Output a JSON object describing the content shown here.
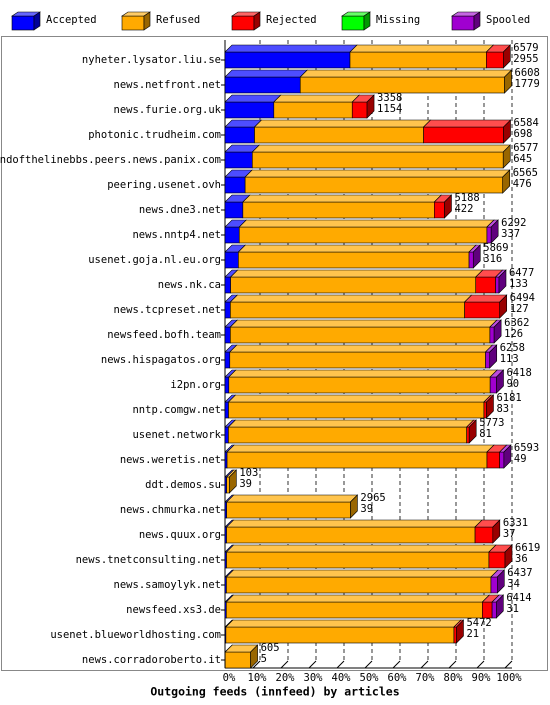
{
  "chart_data": {
    "type": "stacked-bar-3d",
    "orientation": "horizontal",
    "xlabel": "Outgoing feeds (innfeed) by articles",
    "categories": [
      "nyheter.lysator.liu.se",
      "news.netfront.net",
      "news.furie.org.uk",
      "photonic.trudheim.com",
      "endofthelinebbs.peers.news.panix.com",
      "peering.usenet.ovh",
      "news.dne3.net",
      "news.nntp4.net",
      "usenet.goja.nl.eu.org",
      "news.nk.ca",
      "news.tcpreset.net",
      "newsfeed.bofh.team",
      "news.hispagatos.org",
      "i2pn.org",
      "nntp.comgw.net",
      "usenet.network",
      "news.weretis.net",
      "ddt.demos.su",
      "news.chmurka.net",
      "news.quux.org",
      "news.tnetconsulting.net",
      "news.samoylyk.net",
      "newsfeed.xs3.de",
      "usenet.blueworldhosting.com",
      "news.corradoroberto.it"
    ],
    "totals": [
      6579,
      6608,
      3358,
      6584,
      6577,
      6565,
      5188,
      6292,
      5869,
      6477,
      6494,
      6362,
      6258,
      6418,
      6181,
      5773,
      6593,
      103,
      2965,
      6331,
      6619,
      6437,
      6414,
      5472,
      605
    ],
    "series": [
      {
        "name": "Accepted",
        "color": "#0000ff",
        "values": [
          2955,
          1779,
          1154,
          698,
          645,
          476,
          422,
          337,
          316,
          133,
          127,
          126,
          113,
          90,
          83,
          81,
          49,
          39,
          39,
          37,
          36,
          34,
          31,
          21,
          5
        ]
      },
      {
        "name": "Refused",
        "color": "#ffaa00",
        "values": [
          3224,
          4829,
          1854,
          3996,
          5932,
          6089,
          4526,
          5855,
          5453,
          5794,
          5537,
          6136,
          6045,
          6178,
          6038,
          5632,
          6144,
          64,
          2926,
          5874,
          6203,
          6253,
          6053,
          5391,
          600
        ]
      },
      {
        "name": "Rejected",
        "color": "#ff0000",
        "values": [
          400,
          0,
          350,
          1890,
          0,
          0,
          240,
          0,
          0,
          470,
          830,
          0,
          0,
          0,
          60,
          60,
          300,
          0,
          0,
          420,
          380,
          0,
          230,
          60,
          0
        ]
      },
      {
        "name": "Missing",
        "color": "#00ff00",
        "values": [
          0,
          0,
          0,
          0,
          0,
          0,
          0,
          0,
          0,
          0,
          0,
          0,
          0,
          0,
          0,
          0,
          0,
          0,
          0,
          0,
          0,
          0,
          0,
          0,
          0
        ]
      },
      {
        "name": "Spooled",
        "color": "#a000d0",
        "values": [
          0,
          0,
          0,
          0,
          0,
          0,
          0,
          100,
          100,
          80,
          0,
          100,
          100,
          150,
          0,
          0,
          100,
          0,
          0,
          0,
          0,
          150,
          100,
          0,
          0
        ]
      }
    ],
    "xlim": [
      0,
      6619
    ],
    "xticks": [
      {
        "value": 0,
        "label": "0%"
      },
      {
        "value": 661.9,
        "label": "10%"
      },
      {
        "value": 1323.8,
        "label": "20%"
      },
      {
        "value": 1985.7,
        "label": "30%"
      },
      {
        "value": 2647.6,
        "label": "40%"
      },
      {
        "value": 3309.5,
        "label": "50%"
      },
      {
        "value": 3971.4,
        "label": "60%"
      },
      {
        "value": 4633.3,
        "label": "70%"
      },
      {
        "value": 5295.2,
        "label": "80%"
      },
      {
        "value": 5957.1,
        "label": "90%"
      },
      {
        "value": 6619,
        "label": "100%"
      }
    ],
    "grid": true,
    "legend": "top"
  }
}
